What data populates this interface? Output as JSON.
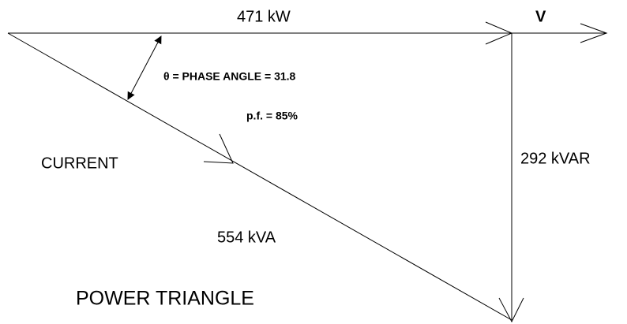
{
  "real_power": "471 kW",
  "voltage": "V",
  "phase_angle": "θ = PHASE ANGLE = 31.8",
  "power_factor": "p.f. = 85%",
  "current": "CURRENT",
  "reactive_power": "292 kVAR",
  "apparent_power": "554 kVA",
  "title": "POWER TRIANGLE"
}
